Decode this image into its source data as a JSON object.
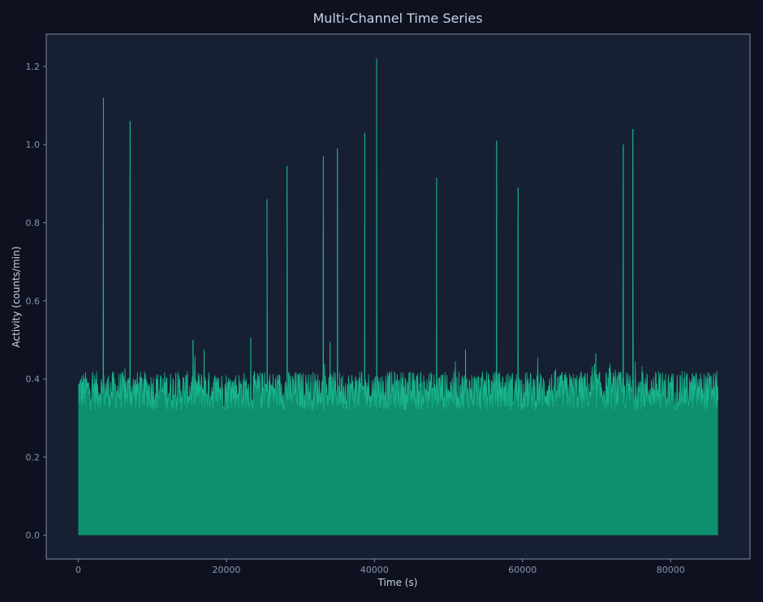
{
  "chart_data": {
    "type": "area",
    "title": "Multi-Channel Time Series",
    "xlabel": "Time (s)",
    "ylabel": "Activity (counts/min)",
    "xlim": [
      -4320,
      90720
    ],
    "ylim": [
      -0.061,
      1.283
    ],
    "xticks": [
      0,
      20000,
      40000,
      60000,
      80000
    ],
    "yticks": [
      0.0,
      0.2,
      0.4,
      0.6,
      0.8,
      1.0,
      1.2
    ],
    "ytick_labels": [
      "0.0",
      "0.2",
      "0.4",
      "0.6",
      "0.8",
      "1.0",
      "1.2"
    ],
    "grid": false,
    "legend": "none",
    "x_range": [
      0,
      86400
    ],
    "baseline_range": [
      0.32,
      0.42
    ],
    "peaks": [
      {
        "x": 3400,
        "y": 1.12
      },
      {
        "x": 7000,
        "y": 1.06
      },
      {
        "x": 15500,
        "y": 0.5
      },
      {
        "x": 17000,
        "y": 0.475
      },
      {
        "x": 23300,
        "y": 0.505
      },
      {
        "x": 25500,
        "y": 0.86
      },
      {
        "x": 28200,
        "y": 0.945
      },
      {
        "x": 33100,
        "y": 0.97
      },
      {
        "x": 34000,
        "y": 0.495
      },
      {
        "x": 35000,
        "y": 0.99
      },
      {
        "x": 38700,
        "y": 1.03
      },
      {
        "x": 40300,
        "y": 1.22
      },
      {
        "x": 48400,
        "y": 0.915
      },
      {
        "x": 52300,
        "y": 0.475
      },
      {
        "x": 56500,
        "y": 1.01
      },
      {
        "x": 59400,
        "y": 0.89
      },
      {
        "x": 69900,
        "y": 0.465
      },
      {
        "x": 73600,
        "y": 1.0
      },
      {
        "x": 74900,
        "y": 1.04
      }
    ],
    "colors": {
      "figure_bg": "#0e1220",
      "plot_bg": "#172033",
      "frame": "#7f8aa0",
      "fill": "#0e8f6e",
      "line": "#19b58c"
    }
  }
}
